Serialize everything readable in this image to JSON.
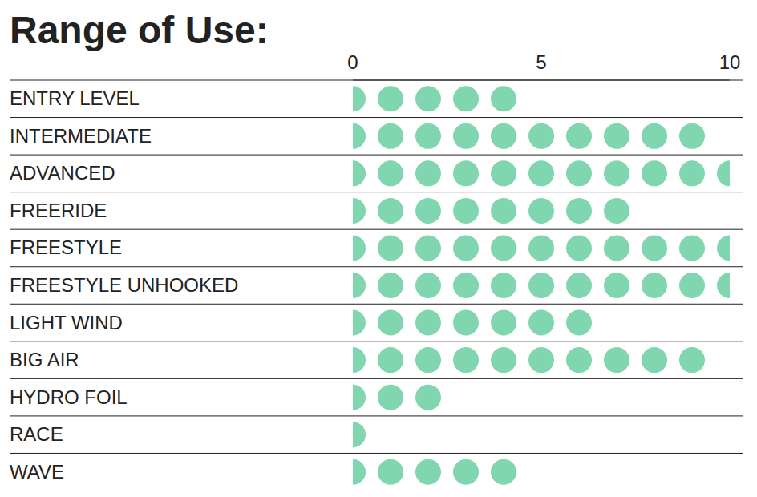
{
  "chart_data": {
    "type": "dot",
    "title": "Range of Use:",
    "orientation": "horizontal",
    "categories": [
      "ENTRY LEVEL",
      "INTERMEDIATE",
      "ADVANCED",
      "FREERIDE",
      "FREESTYLE",
      "FREESTYLE UNHOOKED",
      "LIGHT WIND",
      "BIG AIR",
      "HYDRO FOIL",
      "RACE",
      "WAVE"
    ],
    "values": [
      4,
      9,
      10,
      7,
      10,
      10,
      6,
      9,
      2,
      0,
      4
    ],
    "xlim": [
      0,
      10
    ],
    "xticks": [
      0,
      5,
      10
    ],
    "color": "#80d6ae",
    "grid": false
  }
}
